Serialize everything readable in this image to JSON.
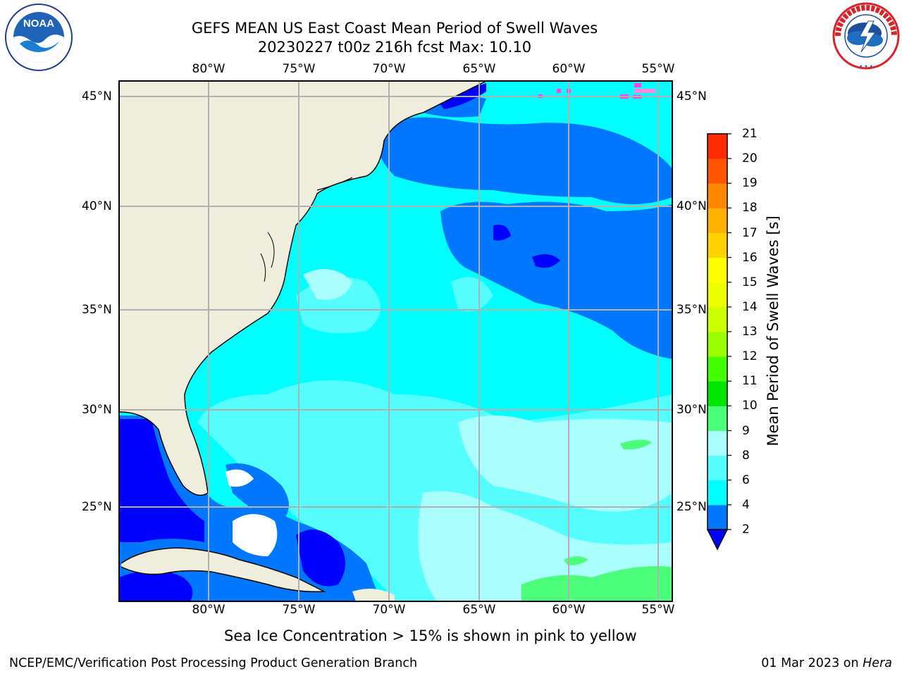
{
  "header": {
    "title_line1": "GEFS MEAN US East Coast Mean Period of Swell Waves",
    "title_line2": "20230227 t00z 216h fcst   Max: 10.10"
  },
  "logos": {
    "left": {
      "text": "NOAA",
      "ring_text": "NATIONAL OCEANIC AND ATMOSPHERIC ADMINISTRATION · U.S. DEPARTMENT OF COMMERCE"
    },
    "right": {
      "ring_text": "NATIONAL WEATHER SERVICE"
    }
  },
  "map": {
    "lon_labels": [
      "80°W",
      "75°W",
      "70°W",
      "65°W",
      "60°W",
      "55°W"
    ],
    "lat_labels": [
      "45°N",
      "40°N",
      "35°N",
      "30°N",
      "25°N"
    ],
    "extent": {
      "lon": [
        -85,
        -54.5
      ],
      "lat": [
        20.5,
        45.8
      ]
    },
    "colors": {
      "land": "#efeedc",
      "frame": "#000000",
      "grid": "#b0b0b0",
      "coast": "#000000"
    }
  },
  "colorbar": {
    "label": "Mean Period of Swell Waves [s]",
    "ticks": [
      "2",
      "4",
      "6",
      "8",
      "9",
      "10",
      "11",
      "12",
      "13",
      "14",
      "15",
      "16",
      "17",
      "18",
      "19",
      "20",
      "21"
    ],
    "under_color": "#0000ff",
    "colors": [
      "#0077ff",
      "#00ffff",
      "#55ffff",
      "#aaffff",
      "#4cff7a",
      "#00e600",
      "#44ff00",
      "#99ff00",
      "#ccff00",
      "#eeff00",
      "#ffff00",
      "#ffd200",
      "#ffb000",
      "#ff8800",
      "#ff5500",
      "#ff2a00",
      "#ff0000"
    ]
  },
  "footer": {
    "ice_note": "Sea Ice Concentration > 15% is shown in pink to yellow",
    "left": "NCEP/EMC/Verification Post Processing Product Generation Branch",
    "right_date": "01 Mar 2023 on",
    "right_host": "Hera"
  }
}
